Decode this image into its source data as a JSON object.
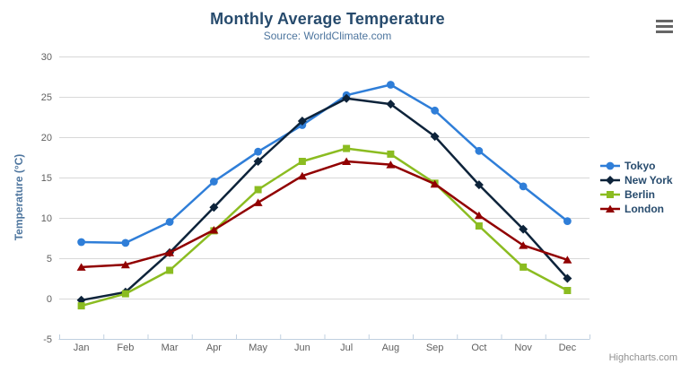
{
  "credits": "Highcharts.com",
  "menu": {
    "icon": "hamburger-menu-icon"
  },
  "chart_data": {
    "type": "line",
    "title": "Monthly Average Temperature",
    "subtitle": "Source: WorldClimate.com",
    "xlabel": "",
    "ylabel": "Temperature (°C)",
    "ylim": [
      -5,
      30
    ],
    "ytick_step": 5,
    "grid": true,
    "legend_position": "right",
    "categories": [
      "Jan",
      "Feb",
      "Mar",
      "Apr",
      "May",
      "Jun",
      "Jul",
      "Aug",
      "Sep",
      "Oct",
      "Nov",
      "Dec"
    ],
    "series": [
      {
        "name": "Tokyo",
        "color": "#2f7ed8",
        "marker": "circle",
        "values": [
          7.0,
          6.9,
          9.5,
          14.5,
          18.2,
          21.5,
          25.2,
          26.5,
          23.3,
          18.3,
          13.9,
          9.6
        ]
      },
      {
        "name": "New York",
        "color": "#0d233a",
        "marker": "diamond",
        "values": [
          -0.2,
          0.8,
          5.7,
          11.3,
          17.0,
          22.0,
          24.8,
          24.1,
          20.1,
          14.1,
          8.6,
          2.5
        ]
      },
      {
        "name": "Berlin",
        "color": "#8bbc21",
        "marker": "square",
        "values": [
          -0.9,
          0.6,
          3.5,
          8.4,
          13.5,
          17.0,
          18.6,
          17.9,
          14.3,
          9.0,
          3.9,
          1.0
        ]
      },
      {
        "name": "London",
        "color": "#910000",
        "marker": "triangle",
        "values": [
          3.9,
          4.2,
          5.7,
          8.5,
          11.9,
          15.2,
          17.0,
          16.6,
          14.2,
          10.3,
          6.6,
          4.8
        ]
      }
    ],
    "style": {
      "grid_color": "#d8d8d8",
      "axis_color": "#c0d0e0",
      "label_color": "#606060",
      "title_color": "#274b6d",
      "subtitle_color": "#4d759e"
    }
  }
}
